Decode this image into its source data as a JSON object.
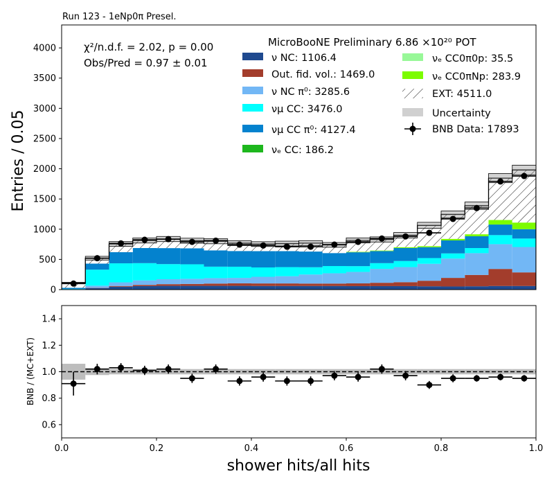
{
  "figure": {
    "run_label": "Run 123 - 1eNp0π Presel.",
    "stats_line1": "χ²/n.d.f. = 2.02, p = 0.00",
    "stats_line2": "Obs/Pred = 0.97 ± 0.01",
    "legend_title": "MicroBooNE Preliminary 6.86 ×10²⁰ POT",
    "xlabel": "shower hits/all hits",
    "ylabel": "Entries / 0.05",
    "ratio_ylabel": "BNB / (MC+EXT)"
  },
  "chart_data": [
    {
      "type": "bar",
      "subtype": "stacked histogram with data points",
      "xlim": [
        0,
        1
      ],
      "ylim": [
        0,
        4380
      ],
      "yticks": [
        0,
        500,
        1000,
        1500,
        2000,
        2500,
        3000,
        3500,
        4000
      ],
      "xticks": [
        0.0,
        0.2,
        0.4,
        0.6,
        0.8,
        1.0
      ],
      "xtick_labels": [
        "0.0",
        "0.2",
        "0.4",
        "0.6",
        "0.8",
        "1.0"
      ],
      "bin_edges": [
        0,
        0.05,
        0.1,
        0.15,
        0.2,
        0.25,
        0.3,
        0.35,
        0.4,
        0.45,
        0.5,
        0.55,
        0.6,
        0.65,
        0.7,
        0.75,
        0.8,
        0.85,
        0.9,
        0.95,
        1.0
      ],
      "series": [
        {
          "name": "ν NC: 1106.4",
          "color": "#1f4a8f",
          "values": [
            3,
            25,
            48,
            58,
            62,
            62,
            62,
            62,
            60,
            60,
            60,
            60,
            58,
            58,
            58,
            55,
            52,
            55,
            60,
            60
          ]
        },
        {
          "name": "Out. fid. vol.: 1469.0",
          "color": "#a33d2c",
          "values": [
            0,
            5,
            12,
            20,
            28,
            32,
            38,
            42,
            42,
            42,
            40,
            40,
            45,
            55,
            65,
            92,
            142,
            188,
            282,
            225
          ]
        },
        {
          "name": "ν NC π⁰: 3285.6",
          "color": "#72b7f5",
          "values": [
            2,
            35,
            60,
            75,
            82,
            85,
            90,
            90,
            110,
            120,
            150,
            170,
            190,
            230,
            250,
            280,
            320,
            360,
            410,
            420
          ]
        },
        {
          "name": "νμ CC: 3476.0",
          "color": "#00ffff",
          "values": [
            5,
            265,
            315,
            285,
            250,
            240,
            190,
            185,
            155,
            150,
            120,
            120,
            95,
            95,
            100,
            95,
            85,
            85,
            150,
            140
          ]
        },
        {
          "name": "νμ CC π⁰: 4127.4",
          "color": "#0482ce",
          "values": [
            20,
            100,
            185,
            250,
            265,
            265,
            270,
            260,
            270,
            265,
            260,
            215,
            230,
            200,
            215,
            180,
            215,
            195,
            175,
            155
          ]
        },
        {
          "name": "νₑ CC: 186.2",
          "color": "#1db71d",
          "values": [
            0,
            0,
            0,
            0,
            0,
            0,
            0,
            0,
            0,
            0,
            0,
            0,
            0,
            0,
            0,
            0,
            0,
            0,
            0,
            0
          ]
        },
        {
          "name": "νₑ CC0π0p: 35.5",
          "color": "#98f898",
          "values": [
            0,
            0,
            0,
            0,
            0,
            0,
            0,
            0,
            0,
            0,
            0,
            0,
            0,
            0,
            0,
            0,
            0,
            0,
            0,
            0
          ]
        },
        {
          "name": "νₑ CC0πNp: 283.9",
          "color": "#7cfc00",
          "values": [
            0,
            0,
            0,
            0,
            0,
            0,
            0,
            0,
            0,
            0,
            0,
            0,
            8,
            9,
            14,
            18,
            26,
            33,
            75,
            110
          ]
        },
        {
          "name": "EXT: 4511.0",
          "color": "hatch",
          "values": [
            80,
            90,
            135,
            125,
            150,
            125,
            150,
            130,
            116,
            125,
            140,
            135,
            188,
            183,
            198,
            343,
            405,
            472,
            693,
            870
          ]
        }
      ],
      "uncertainty_label": "Uncertainty",
      "data": {
        "name": "BNB Data: 17893",
        "x": [
          0.025,
          0.075,
          0.125,
          0.175,
          0.225,
          0.275,
          0.325,
          0.375,
          0.425,
          0.475,
          0.525,
          0.575,
          0.625,
          0.675,
          0.725,
          0.775,
          0.825,
          0.875,
          0.925,
          0.975
        ],
        "y": [
          100,
          520,
          765,
          825,
          835,
          790,
          810,
          745,
          730,
          710,
          710,
          745,
          790,
          845,
          880,
          940,
          1170,
          1350,
          1790,
          1880
        ]
      },
      "legend_location": "upper right"
    },
    {
      "type": "scatter",
      "subtype": "ratio panel",
      "xlim": [
        0,
        1
      ],
      "ylim": [
        0.5,
        1.5
      ],
      "yticks": [
        0.6,
        0.8,
        1.0,
        1.2,
        1.4
      ],
      "x": [
        0.025,
        0.075,
        0.125,
        0.175,
        0.225,
        0.275,
        0.325,
        0.375,
        0.425,
        0.475,
        0.525,
        0.575,
        0.625,
        0.675,
        0.725,
        0.775,
        0.825,
        0.875,
        0.925,
        0.975
      ],
      "y": [
        0.91,
        1.02,
        1.03,
        1.01,
        1.02,
        0.95,
        1.02,
        0.93,
        0.96,
        0.93,
        0.93,
        0.97,
        0.96,
        1.02,
        0.97,
        0.9,
        0.95,
        0.95,
        0.96,
        0.95
      ],
      "yerr": [
        0.09,
        0.04,
        0.035,
        0.035,
        0.035,
        0.035,
        0.035,
        0.035,
        0.035,
        0.035,
        0.035,
        0.035,
        0.035,
        0.035,
        0.035,
        0.03,
        0.03,
        0.025,
        0.025,
        0.025
      ],
      "uncertainty_band": [
        0.06,
        0.025,
        0.02,
        0.02,
        0.02,
        0.02,
        0.02,
        0.02,
        0.02,
        0.02,
        0.02,
        0.02,
        0.02,
        0.02,
        0.02,
        0.02,
        0.02,
        0.02,
        0.02,
        0.02
      ],
      "reference_line": 1.0
    }
  ]
}
